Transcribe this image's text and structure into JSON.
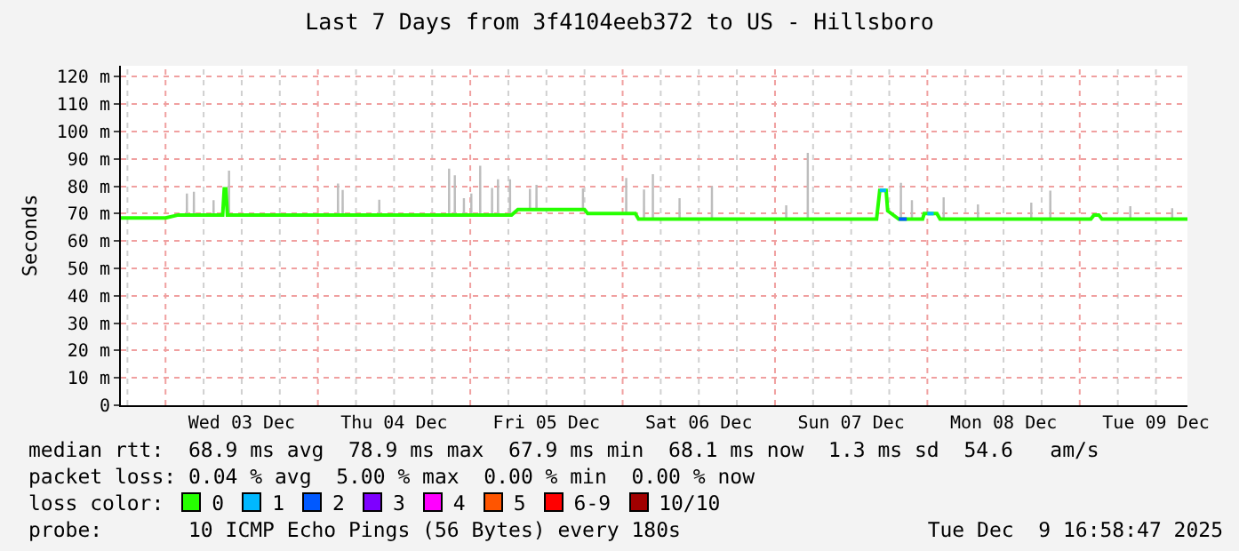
{
  "chart_data": {
    "type": "line",
    "title": "Last 7 Days from 3f4104eeb372 to US - Hillsboro",
    "ylabel": "Seconds",
    "xlim": [
      "2025-12-02T16:58",
      "2025-12-09T16:58"
    ],
    "xticks": [
      {
        "value": "2025-12-03T12:00",
        "label": "Wed 03 Dec"
      },
      {
        "value": "2025-12-04T12:00",
        "label": "Thu 04 Dec"
      },
      {
        "value": "2025-12-05T12:00",
        "label": "Fri 05 Dec"
      },
      {
        "value": "2025-12-06T12:00",
        "label": "Sat 06 Dec"
      },
      {
        "value": "2025-12-07T12:00",
        "label": "Sun 07 Dec"
      },
      {
        "value": "2025-12-08T12:00",
        "label": "Mon 08 Dec"
      },
      {
        "value": "2025-12-09T12:00",
        "label": "Tue 09 Dec"
      }
    ],
    "ylim": [
      0,
      124
    ],
    "yticks": [
      0,
      {
        "value": 10,
        "label": "10 m"
      },
      {
        "value": 20,
        "label": "20 m"
      },
      {
        "value": 30,
        "label": "30 m"
      },
      {
        "value": 40,
        "label": "40 m"
      },
      {
        "value": 50,
        "label": "50 m"
      },
      {
        "value": 60,
        "label": "60 m"
      },
      {
        "value": 70,
        "label": "70 m"
      },
      {
        "value": 80,
        "label": "80 m"
      },
      {
        "value": 90,
        "label": "90 m"
      },
      {
        "value": 100,
        "label": "100 m"
      },
      {
        "value": 110,
        "label": "110 m"
      },
      {
        "value": 120,
        "label": "120 m"
      }
    ],
    "grid": true,
    "legend": "bottom",
    "series": [
      {
        "name": "0",
        "color": "#26ff00",
        "x": [
          "2025-12-02T16:58",
          "2025-12-03T00:00",
          "2025-12-03T02:00",
          "2025-12-03T03:11",
          "2025-12-03T03:12",
          "2025-12-03T03:32",
          "2025-12-03T03:33",
          "2025-12-03T04:17",
          "2025-12-03T04:18",
          "2025-12-03T04:38",
          "2025-12-03T04:39",
          "2025-12-03T07:23",
          "2025-12-03T07:24",
          "2025-12-03T07:44",
          "2025-12-03T07:45",
          "2025-12-03T09:00",
          "2025-12-03T09:15",
          "2025-12-03T09:30",
          "2025-12-03T09:45",
          "2025-12-03T09:49",
          "2025-12-03T09:50",
          "2025-12-03T10:10",
          "2025-12-03T10:11",
          "2025-12-04T02:59",
          "2025-12-04T03:00",
          "2025-12-04T03:20",
          "2025-12-04T03:21",
          "2025-12-04T03:43",
          "2025-12-04T03:44",
          "2025-12-04T04:04",
          "2025-12-04T04:05",
          "2025-12-04T09:29",
          "2025-12-04T09:30",
          "2025-12-04T09:50",
          "2025-12-04T09:51",
          "2025-12-04T20:29",
          "2025-12-04T20:30",
          "2025-12-04T20:50",
          "2025-12-04T20:51",
          "2025-12-04T21:23",
          "2025-12-04T21:24",
          "2025-12-04T21:44",
          "2025-12-04T21:45",
          "2025-12-04T22:49",
          "2025-12-04T22:50",
          "2025-12-04T23:10",
          "2025-12-04T23:11",
          "2025-12-04T23:59",
          "2025-12-05T00:00",
          "2025-12-05T00:20",
          "2025-12-05T00:21",
          "2025-12-05T01:23",
          "2025-12-05T01:24",
          "2025-12-05T01:44",
          "2025-12-05T01:45",
          "2025-12-05T03:15",
          "2025-12-05T03:16",
          "2025-12-05T03:36",
          "2025-12-05T03:37",
          "2025-12-05T04:11",
          "2025-12-05T04:12",
          "2025-12-05T04:32",
          "2025-12-05T04:33",
          "2025-12-05T06:05",
          "2025-12-05T06:06",
          "2025-12-05T06:26",
          "2025-12-05T06:27",
          "2025-12-05T06:30",
          "2025-12-05T07:30",
          "2025-12-05T09:13",
          "2025-12-05T09:14",
          "2025-12-05T09:34",
          "2025-12-05T09:35",
          "2025-12-05T10:15",
          "2025-12-05T10:16",
          "2025-12-05T10:36",
          "2025-12-05T10:37",
          "2025-12-05T17:34",
          "2025-12-05T17:35",
          "2025-12-05T17:55",
          "2025-12-05T17:56",
          "2025-12-05T18:00",
          "2025-12-05T18:30",
          "2025-12-06T00:23",
          "2025-12-06T00:24",
          "2025-12-06T00:44",
          "2025-12-06T00:45",
          "2025-12-06T02:00",
          "2025-12-06T02:30",
          "2025-12-06T03:11",
          "2025-12-06T03:12",
          "2025-12-06T03:32",
          "2025-12-06T03:33",
          "2025-12-06T04:35",
          "2025-12-06T04:36",
          "2025-12-06T04:56",
          "2025-12-06T04:57",
          "2025-12-06T08:47",
          "2025-12-06T08:48",
          "2025-12-06T09:08",
          "2025-12-06T09:09",
          "2025-12-06T13:53",
          "2025-12-06T13:54",
          "2025-12-06T14:14",
          "2025-12-06T14:15",
          "2025-12-07T01:35",
          "2025-12-07T01:36",
          "2025-12-07T01:56",
          "2025-12-07T01:57",
          "2025-12-07T04:59",
          "2025-12-07T05:00",
          "2025-12-07T05:20",
          "2025-12-07T05:21",
          "2025-12-07T16:00",
          "2025-12-07T16:30",
          "2025-12-07T17:30",
          "2025-12-07T17:45",
          "2025-12-07T19:30",
          "2025-12-07T19:39",
          "2025-12-07T19:40",
          "2025-12-07T20:00",
          "2025-12-07T20:01",
          "2025-12-07T21:23",
          "2025-12-07T21:24",
          "2025-12-07T21:44",
          "2025-12-07T21:45",
          "2025-12-07T23:15",
          "2025-12-07T23:30",
          "2025-12-08T01:30",
          "2025-12-08T02:00",
          "2025-12-08T02:23",
          "2025-12-08T02:24",
          "2025-12-08T02:44",
          "2025-12-08T02:45",
          "2025-12-08T07:47",
          "2025-12-08T07:48",
          "2025-12-08T08:08",
          "2025-12-08T08:09",
          "2025-12-08T16:11",
          "2025-12-08T16:12",
          "2025-12-08T16:32",
          "2025-12-08T16:33",
          "2025-12-08T19:11",
          "2025-12-08T19:12",
          "2025-12-08T19:32",
          "2025-12-08T19:33",
          "2025-12-09T01:45",
          "2025-12-09T02:15",
          "2025-12-09T03:00",
          "2025-12-09T03:30",
          "2025-12-09T07:47",
          "2025-12-09T07:48",
          "2025-12-09T08:08",
          "2025-12-09T08:09",
          "2025-12-09T14:23",
          "2025-12-09T14:24",
          "2025-12-09T14:44",
          "2025-12-09T14:45",
          "2025-12-09T16:58"
        ],
        "values": [
          68.4,
          68.4,
          69.5,
          69.5,
          69.5,
          69.5,
          69.5,
          69.5,
          69.5,
          69.5,
          69.5,
          69.5,
          69.5,
          69.5,
          69.5,
          69.5,
          79,
          79,
          69.5,
          69.5,
          69.5,
          69.5,
          69.5,
          69.5,
          69.5,
          69.5,
          69.5,
          69.5,
          69.5,
          69.5,
          69.5,
          69.5,
          69.5,
          69.5,
          69.5,
          69.5,
          69.5,
          69.5,
          69.5,
          69.5,
          69.5,
          69.5,
          69.5,
          69.5,
          69.5,
          69.5,
          69.5,
          69.5,
          69.5,
          69.5,
          69.5,
          69.5,
          69.5,
          69.5,
          69.5,
          69.5,
          69.5,
          69.5,
          69.5,
          69.5,
          69.5,
          69.5,
          69.5,
          69.5,
          69.5,
          69.5,
          69.5,
          69.5,
          71.5,
          71.5,
          71.5,
          71.5,
          71.5,
          71.5,
          71.5,
          71.5,
          71.5,
          71.5,
          71.5,
          71.5,
          71.5,
          71.5,
          70,
          70,
          70,
          70,
          70,
          70,
          68,
          68,
          68,
          68,
          68,
          68,
          68,
          68,
          68,
          68,
          68,
          68,
          68,
          68,
          68,
          68,
          68,
          68,
          68,
          68,
          68,
          68,
          68,
          68,
          68,
          68,
          78.5,
          78.5,
          71,
          68,
          68,
          68,
          68,
          68,
          68,
          68,
          68,
          68,
          68,
          70,
          70,
          68,
          68,
          68,
          68,
          68,
          68,
          68,
          68,
          68,
          68,
          68,
          68,
          68,
          68,
          68,
          68,
          68,
          68,
          69.5,
          69.5,
          68,
          68,
          68,
          68,
          68,
          68,
          68,
          68,
          68,
          68
        ],
        "lower": [
          68.4,
          68.4,
          69.5,
          69.5,
          69.5,
          69.5,
          69.5,
          69.5,
          69.5,
          69.5,
          69.5,
          69.5,
          69.5,
          69.5,
          69.5,
          69.5,
          79,
          79,
          69.5,
          69.5,
          69.5,
          69.5,
          69.5,
          69.5,
          69.5,
          69.5,
          69.5,
          69.5,
          69.5,
          69.5,
          69.5,
          69.5,
          69.5,
          69.5,
          69.5,
          69.5,
          69.5,
          69.5,
          69.5,
          69.5,
          69.5,
          69.5,
          69.5,
          69.5,
          69.5,
          69.5,
          69.5,
          69.5,
          69.5,
          69.5,
          69.5,
          69.5,
          69.5,
          69.5,
          69.5,
          69.5,
          69.5,
          69.5,
          69.5,
          69.5,
          69.5,
          69.5,
          69.5,
          69.5,
          69.5,
          69.5,
          69.5,
          69.5,
          71.5,
          71.5,
          71.5,
          71.5,
          71.5,
          71.5,
          71.5,
          71.5,
          71.5,
          71.5,
          71.5,
          71.5,
          71.5,
          71.5,
          70,
          70,
          70,
          70,
          70,
          70,
          68,
          68,
          68,
          68,
          68,
          68,
          68,
          68,
          68,
          68,
          68,
          68,
          68,
          68,
          68,
          68,
          68,
          68,
          68,
          68,
          68,
          68,
          68,
          68,
          68,
          68,
          78.5,
          78.5,
          71,
          68,
          68,
          68,
          68,
          68,
          68,
          68,
          68,
          68,
          68,
          70,
          70,
          68,
          68,
          68,
          68,
          68,
          68,
          68,
          68,
          68,
          68,
          68,
          68,
          68,
          68,
          68,
          68,
          68,
          68,
          69.5,
          69.5,
          68,
          68,
          68,
          68,
          68,
          68,
          68,
          68,
          68,
          68
        ],
        "upper": [
          68.4,
          68.4,
          69.5,
          69.5,
          77.3,
          77.3,
          69.5,
          69.5,
          78,
          78,
          69.5,
          69.5,
          74.9,
          74.9,
          69.5,
          69.5,
          79,
          79,
          69.5,
          69.5,
          85.7,
          85.7,
          69.5,
          69.5,
          81,
          81,
          69.5,
          69.5,
          78.6,
          78.6,
          69.5,
          69.5,
          75.1,
          75.1,
          69.5,
          69.5,
          86.4,
          86.4,
          69.5,
          69.5,
          84,
          84,
          69.5,
          69.5,
          75.6,
          75.6,
          69.5,
          69.5,
          77.3,
          77.3,
          69.5,
          69.5,
          87.5,
          87.5,
          69.5,
          69.5,
          79.4,
          79.4,
          69.5,
          69.5,
          82.5,
          82.5,
          69.5,
          69.5,
          82.5,
          82.5,
          69.5,
          69.5,
          71.5,
          71.5,
          79,
          79,
          71.5,
          71.5,
          80.5,
          80.5,
          71.5,
          71.5,
          79.2,
          79.2,
          71.5,
          71.5,
          70,
          70,
          83,
          83,
          70,
          70,
          68,
          68,
          78.8,
          78.8,
          68,
          68,
          84.4,
          84.4,
          68,
          68,
          75.6,
          75.6,
          68,
          68,
          80,
          80,
          68,
          68,
          73,
          73,
          68,
          68,
          92.2,
          92.2,
          68,
          68,
          78.5,
          78.5,
          71,
          68,
          68,
          81.2,
          81.2,
          68,
          68,
          74.9,
          74.9,
          68,
          68,
          70,
          70,
          68,
          68,
          76,
          76,
          68,
          68,
          73.4,
          73.4,
          68,
          68,
          74,
          74,
          68,
          68,
          78.4,
          78.4,
          68,
          68,
          69.5,
          69.5,
          68,
          68,
          72.7,
          72.7,
          68,
          68,
          72,
          72,
          68,
          68
        ]
      },
      {
        "name": "1",
        "color": "#00b8ff",
        "x": [
          "2025-12-07T16:30",
          "2025-12-07T17:30",
          "2025-12-07T20:00",
          "2025-12-08T00:00",
          "2025-12-08T01:00"
        ],
        "values": [
          78.5,
          78.5,
          null,
          70,
          70
        ]
      },
      {
        "name": "2",
        "color": "#0059ff",
        "x": [
          "2025-12-07T19:30",
          "2025-12-07T20:45"
        ],
        "values": [
          68,
          68
        ]
      },
      {
        "name": "3",
        "color": "#7e00ff"
      },
      {
        "name": "4",
        "color": "#ff00ff"
      },
      {
        "name": "5",
        "color": "#ff5500"
      },
      {
        "name": "6-9",
        "color": "#ff0000"
      },
      {
        "name": "10/10",
        "color": "#a10000"
      }
    ],
    "annotations": [
      "median rtt:  68.9 ms avg  78.9 ms max  67.9 ms min  68.1 ms now  1.3 ms sd  54.6   am/s",
      "packet loss: 0.04 % avg  5.00 % max  0.00 % min  0.00 % now",
      "loss color:",
      "probe:       10 ICMP Echo Pings (56 Bytes) every 180s",
      "Tue Dec  9 16:58:47 2025"
    ]
  }
}
